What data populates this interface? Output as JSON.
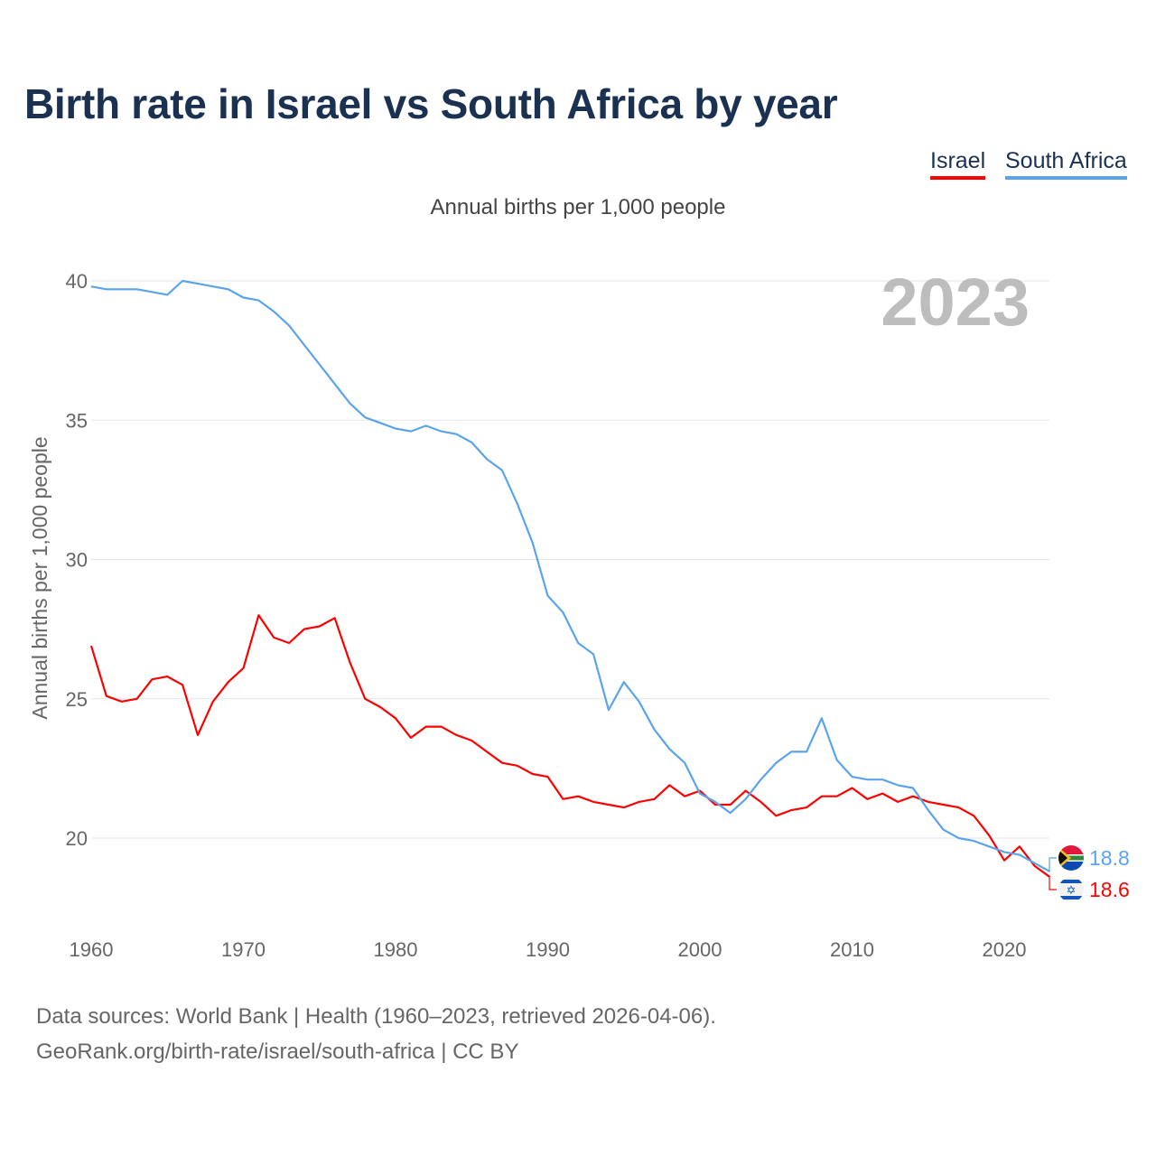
{
  "chart_data": {
    "type": "line",
    "title": "Birth rate in Israel vs South Africa by year",
    "subtitle": "Annual births per 1,000 people",
    "ylabel": "Annual births per 1,000 people",
    "xlabel": "",
    "year_watermark": "2023",
    "ylim": [
      17,
      41
    ],
    "xlim": [
      1960,
      2023
    ],
    "yticks": [
      20,
      25,
      30,
      35,
      40
    ],
    "xticks": [
      1960,
      1970,
      1980,
      1990,
      2000,
      2010,
      2020
    ],
    "grid": true,
    "legend_position": "top-right",
    "x_start": 1960,
    "series": [
      {
        "name": "Israel",
        "color": "#ff0000",
        "end_label": "18.6",
        "values": [
          26.9,
          25.1,
          24.9,
          25.0,
          25.7,
          25.8,
          25.5,
          23.7,
          24.9,
          25.6,
          26.1,
          28.0,
          27.2,
          27.0,
          27.5,
          27.6,
          27.9,
          26.3,
          25.0,
          24.7,
          24.3,
          23.6,
          24.0,
          24.0,
          23.7,
          23.5,
          23.1,
          22.7,
          22.6,
          22.3,
          22.2,
          21.4,
          21.5,
          21.3,
          21.2,
          21.1,
          21.3,
          21.4,
          21.9,
          21.5,
          21.7,
          21.2,
          21.2,
          21.7,
          21.3,
          20.8,
          21.0,
          21.1,
          21.5,
          21.5,
          21.8,
          21.4,
          21.6,
          21.3,
          21.5,
          21.3,
          21.2,
          21.1,
          20.8,
          20.1,
          19.2,
          19.7,
          19.0,
          18.6
        ]
      },
      {
        "name": "South Africa",
        "color": "#5ba4ec",
        "end_label": "18.8",
        "values": [
          39.8,
          39.7,
          39.7,
          39.7,
          39.6,
          39.5,
          40.0,
          39.9,
          39.8,
          39.7,
          39.4,
          39.3,
          38.9,
          38.4,
          37.7,
          37.0,
          36.3,
          35.6,
          35.1,
          34.9,
          34.7,
          34.6,
          34.8,
          34.6,
          34.5,
          34.2,
          33.6,
          33.2,
          32.0,
          30.6,
          28.7,
          28.1,
          27.0,
          26.6,
          24.6,
          25.6,
          24.9,
          23.9,
          23.2,
          22.7,
          21.6,
          21.3,
          20.9,
          21.4,
          22.1,
          22.7,
          23.1,
          23.1,
          24.3,
          22.8,
          22.2,
          22.1,
          22.1,
          21.9,
          21.8,
          21.0,
          20.3,
          20.0,
          19.9,
          19.7,
          19.5,
          19.4,
          19.1,
          18.8
        ]
      }
    ]
  },
  "footer": {
    "line1": "Data sources: World Bank | Health (1960–2023, retrieved 2026-04-06).",
    "line2": "GeoRank.org/birth-rate/israel/south-africa | CC BY"
  }
}
